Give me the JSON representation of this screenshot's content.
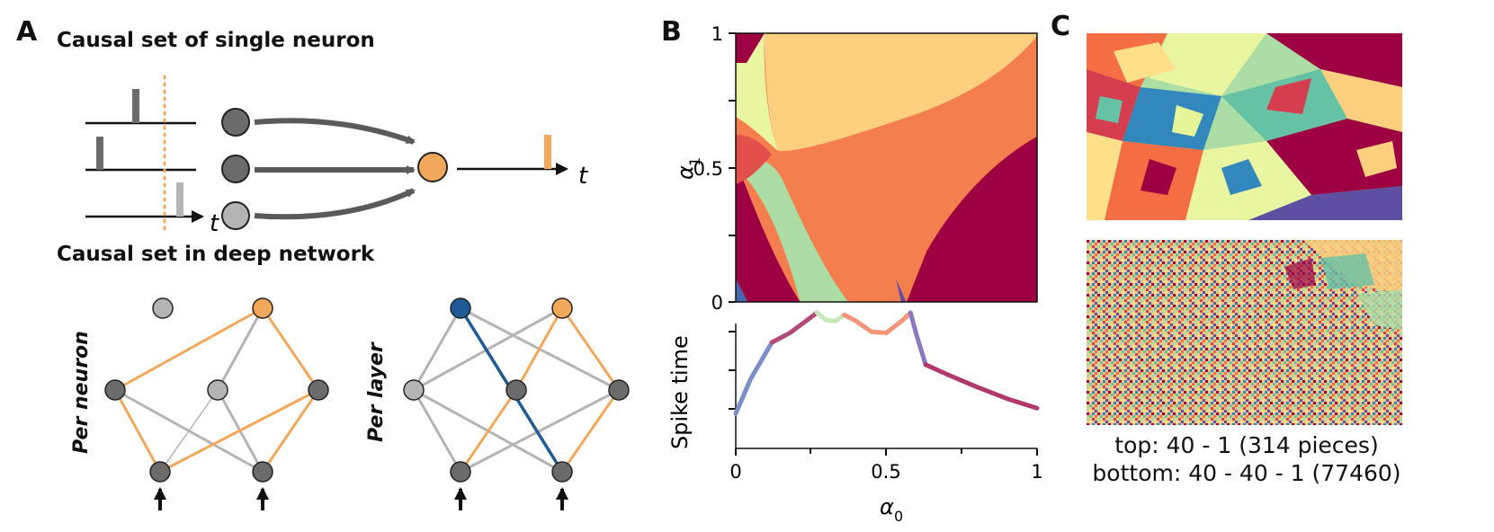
{
  "panels": {
    "a": {
      "letter": "A",
      "single_title": "Causal set of single neuron",
      "deep_title": "Causal set in deep network",
      "time_label_1": "t",
      "time_label_2": "t",
      "per_neuron_label": "Per neuron",
      "per_layer_label": "Per layer"
    },
    "b": {
      "letter": "B",
      "top_plot": {
        "ylabel": "α",
        "ylabel_sub": "1",
        "yticks": [
          "1",
          "0.5",
          "0"
        ]
      },
      "bottom_plot": {
        "ylabel": "Spike time",
        "xlabel": "α",
        "xlabel_sub": "0",
        "xticks": [
          "0",
          "0.5",
          "1"
        ]
      }
    },
    "c": {
      "letter": "C",
      "caption_top": "top: 40 - 1 (314 pieces)",
      "caption_bottom": "bottom: 40 - 40 - 1 (77460)"
    }
  },
  "colors": {
    "orange": "#f2a85a",
    "dark_gray": "#6b6b6b",
    "light_gray": "#b4b4b4",
    "blue": "#1f5a96",
    "crimson": "#9e0142",
    "red_orange": "#f57e4f",
    "light_orange": "#fdcf7e",
    "light_yellow": "#e9f5a0",
    "light_green": "#abdda4",
    "blue_region": "#4a68b0"
  },
  "chart_data": {
    "type": "line",
    "title": "",
    "xlabel": "α0",
    "ylabel": "Spike time",
    "xlim": [
      0,
      1
    ],
    "x": [
      0.0,
      0.05,
      0.12,
      0.18,
      0.27,
      0.3,
      0.33,
      0.36,
      0.4,
      0.45,
      0.5,
      0.55,
      0.58,
      0.6,
      0.63,
      0.7,
      0.8,
      0.9,
      1.0
    ],
    "y": [
      0.05,
      0.38,
      0.72,
      0.81,
      1.0,
      0.93,
      0.92,
      0.98,
      0.92,
      0.82,
      0.81,
      0.92,
      1.0,
      0.79,
      0.51,
      0.42,
      0.3,
      0.19,
      0.1
    ],
    "segments": [
      {
        "from": 0.0,
        "to": 0.12,
        "color": "#7b8ec8"
      },
      {
        "from": 0.12,
        "to": 0.27,
        "color": "#b24a78"
      },
      {
        "from": 0.27,
        "to": 0.36,
        "color": "#c8e6b8"
      },
      {
        "from": 0.36,
        "to": 0.58,
        "color": "#f4957a"
      },
      {
        "from": 0.58,
        "to": 0.63,
        "color": "#8a78be"
      },
      {
        "from": 0.63,
        "to": 1.0,
        "color": "#b0386c"
      }
    ]
  }
}
